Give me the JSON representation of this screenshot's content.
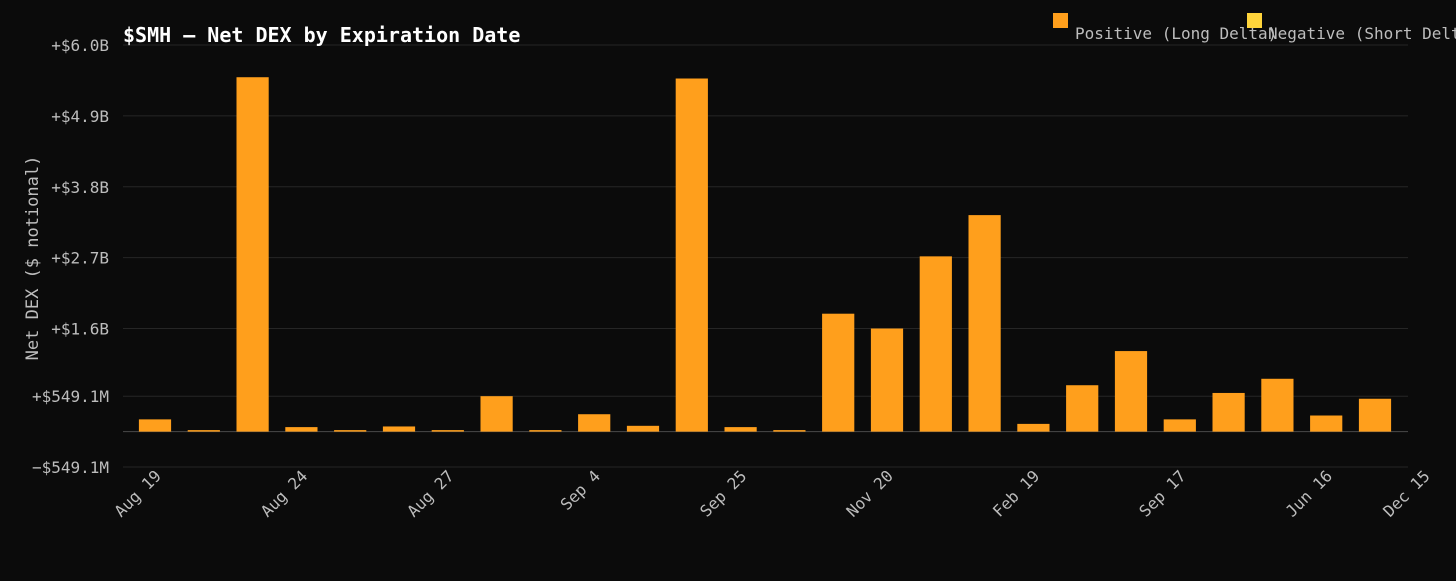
{
  "chart_data": {
    "type": "bar",
    "title": "$SMH — Net DEX by Expiration Date",
    "ylabel": "Net DEX ($ notional)",
    "xlabel": "",
    "ylim": [
      -549100000,
      6000000000
    ],
    "yticks": [
      -549100000,
      549100000,
      1600000000,
      2700000000,
      3800000000,
      4900000000,
      6000000000
    ],
    "ytick_labels": [
      "−$549.1M",
      "+$549.1M",
      "+$1.6B",
      "+$2.7B",
      "+$3.8B",
      "+$4.9B",
      "+$6.0B"
    ],
    "xtick_labels": [
      "Aug 19",
      "Aug 24",
      "Aug 27",
      "Sep 4",
      "Sep 25",
      "Nov 20",
      "Feb 19",
      "Sep 17",
      "Jun 16",
      "Dec 15"
    ],
    "xtick_positions": [
      0,
      3,
      6,
      9,
      12,
      15,
      18,
      21,
      24,
      26
    ],
    "values": [
      190000000,
      10000000,
      5500000000,
      70000000,
      10000000,
      80000000,
      10000000,
      550000000,
      15000000,
      270000000,
      90000000,
      5480000000,
      70000000,
      15000000,
      1830000000,
      1600000000,
      2720000000,
      3360000000,
      120000000,
      720000000,
      1250000000,
      190000000,
      600000000,
      820000000,
      250000000,
      510000000
    ],
    "grid": true,
    "legend_placement": "top-right",
    "legend": [
      {
        "label": "Positive (Long Delta)",
        "color": "#ff9f1c"
      },
      {
        "label": "Negative (Short Delta)",
        "color": "#ffd43b"
      }
    ],
    "colors": {
      "positive": "#ff9f1c",
      "negative": "#ffd43b",
      "background": "#0b0b0b"
    }
  }
}
